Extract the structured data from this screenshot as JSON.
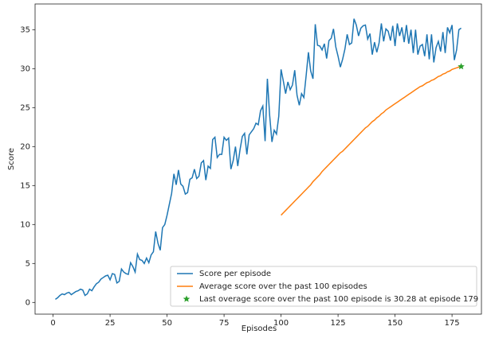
{
  "chart_data": {
    "type": "line",
    "xlabel": "Episodes",
    "ylabel": "Score",
    "xlim": [
      -7.9,
      187.9
    ],
    "ylim": [
      -1.5,
      38.3
    ],
    "xticks": [
      0,
      25,
      50,
      75,
      100,
      125,
      150,
      175
    ],
    "yticks": [
      0,
      5,
      10,
      15,
      20,
      25,
      30,
      35
    ],
    "grid": false,
    "legend": "lower right",
    "series": [
      {
        "name": "Score per episode",
        "color": "#1f77b4",
        "style": "line",
        "x": [
          1,
          2,
          3,
          4,
          5,
          6,
          7,
          8,
          9,
          10,
          11,
          12,
          13,
          14,
          15,
          16,
          17,
          18,
          19,
          20,
          21,
          22,
          23,
          24,
          25,
          26,
          27,
          28,
          29,
          30,
          31,
          32,
          33,
          34,
          35,
          36,
          37,
          38,
          39,
          40,
          41,
          42,
          43,
          44,
          45,
          46,
          47,
          48,
          49,
          50,
          51,
          52,
          53,
          54,
          55,
          56,
          57,
          58,
          59,
          60,
          61,
          62,
          63,
          64,
          65,
          66,
          67,
          68,
          69,
          70,
          71,
          72,
          73,
          74,
          75,
          76,
          77,
          78,
          79,
          80,
          81,
          82,
          83,
          84,
          85,
          86,
          87,
          88,
          89,
          90,
          91,
          92,
          93,
          94,
          95,
          96,
          97,
          98,
          99,
          100,
          101,
          102,
          103,
          104,
          105,
          106,
          107,
          108,
          109,
          110,
          111,
          112,
          113,
          114,
          115,
          116,
          117,
          118,
          119,
          120,
          121,
          122,
          123,
          124,
          125,
          126,
          127,
          128,
          129,
          130,
          131,
          132,
          133,
          134,
          135,
          136,
          137,
          138,
          139,
          140,
          141,
          142,
          143,
          144,
          145,
          146,
          147,
          148,
          149,
          150,
          151,
          152,
          153,
          154,
          155,
          156,
          157,
          158,
          159,
          160,
          161,
          162,
          163,
          164,
          165,
          166,
          167,
          168,
          169,
          170,
          171,
          172,
          173,
          174,
          175,
          176,
          177,
          178,
          179
        ],
        "values": [
          0.4,
          0.6,
          0.9,
          1.1,
          1.0,
          1.2,
          1.3,
          1.0,
          1.2,
          1.4,
          1.5,
          1.7,
          1.6,
          0.9,
          1.1,
          1.7,
          1.5,
          2.0,
          2.4,
          2.6,
          3.0,
          3.2,
          3.4,
          3.5,
          2.9,
          3.7,
          3.6,
          2.5,
          2.7,
          4.3,
          3.9,
          3.7,
          3.6,
          5.1,
          4.6,
          3.9,
          6.2,
          5.5,
          5.4,
          5.0,
          5.7,
          5.1,
          6.1,
          6.5,
          9.1,
          7.6,
          6.7,
          9.6,
          10.0,
          11.2,
          12.6,
          14.0,
          16.5,
          15.1,
          17.0,
          15.2,
          14.9,
          13.9,
          14.1,
          15.8,
          16.0,
          17.1,
          15.9,
          16.2,
          17.9,
          18.2,
          15.7,
          17.5,
          17.2,
          20.9,
          21.2,
          18.6,
          19.0,
          19.0,
          21.2,
          20.8,
          21.1,
          17.1,
          18.2,
          20.0,
          17.5,
          19.6,
          21.3,
          21.7,
          19.0,
          21.5,
          21.9,
          22.3,
          23.0,
          22.8,
          24.6,
          25.2,
          20.7,
          28.7,
          24.0,
          20.6,
          22.1,
          21.6,
          23.9,
          29.9,
          28.4,
          26.8,
          28.3,
          27.3,
          27.9,
          29.8,
          26.6,
          25.3,
          26.8,
          26.3,
          29.1,
          32.1,
          29.7,
          28.7,
          35.7,
          33.0,
          32.9,
          32.4,
          33.2,
          31.3,
          33.6,
          33.9,
          35.1,
          32.8,
          31.6,
          30.2,
          31.2,
          32.5,
          34.4,
          33.1,
          33.3,
          36.4,
          35.6,
          34.2,
          35.2,
          35.5,
          35.6,
          33.8,
          34.5,
          31.8,
          33.4,
          32.1,
          33.3,
          35.8,
          33.5,
          35.1,
          34.8,
          33.6,
          35.5,
          32.9,
          35.8,
          34.2,
          35.3,
          33.4,
          35.6,
          33.2,
          35.0,
          32.0,
          35.0,
          31.8,
          32.9,
          33.1,
          31.6,
          34.4,
          31.2,
          34.4,
          30.8,
          32.7,
          33.5,
          32.2,
          34.7,
          32.0,
          35.3,
          34.6,
          35.6,
          31.1,
          32.4,
          35.0,
          35.2
        ]
      },
      {
        "name": "Average score over the past 100 episodes",
        "color": "#ff7f0e",
        "style": "line",
        "x": [
          100,
          101,
          102,
          103,
          104,
          105,
          106,
          107,
          108,
          109,
          110,
          111,
          112,
          113,
          114,
          115,
          116,
          117,
          118,
          119,
          120,
          121,
          122,
          123,
          124,
          125,
          126,
          127,
          128,
          129,
          130,
          131,
          132,
          133,
          134,
          135,
          136,
          137,
          138,
          139,
          140,
          141,
          142,
          143,
          144,
          145,
          146,
          147,
          148,
          149,
          150,
          151,
          152,
          153,
          154,
          155,
          156,
          157,
          158,
          159,
          160,
          161,
          162,
          163,
          164,
          165,
          166,
          167,
          168,
          169,
          170,
          171,
          172,
          173,
          174,
          175,
          176,
          177,
          178,
          179
        ],
        "values": [
          11.2,
          11.5,
          11.8,
          12.1,
          12.4,
          12.7,
          13.0,
          13.3,
          13.6,
          13.9,
          14.2,
          14.5,
          14.8,
          15.1,
          15.5,
          15.8,
          16.1,
          16.4,
          16.8,
          17.1,
          17.4,
          17.7,
          18.0,
          18.3,
          18.6,
          18.9,
          19.2,
          19.4,
          19.7,
          20.0,
          20.3,
          20.6,
          20.9,
          21.2,
          21.5,
          21.8,
          22.1,
          22.4,
          22.6,
          22.9,
          23.2,
          23.4,
          23.7,
          23.9,
          24.2,
          24.4,
          24.7,
          24.9,
          25.1,
          25.3,
          25.5,
          25.7,
          25.9,
          26.1,
          26.3,
          26.5,
          26.7,
          26.9,
          27.1,
          27.3,
          27.5,
          27.7,
          27.8,
          28.0,
          28.2,
          28.3,
          28.5,
          28.6,
          28.8,
          29.0,
          29.1,
          29.3,
          29.4,
          29.6,
          29.7,
          29.9,
          30.0,
          30.1,
          30.2,
          30.28
        ]
      },
      {
        "name": "Last overage score over the past 100 episode is 30.28 at episode 179",
        "color": "#2ca02c",
        "style": "marker",
        "x": [
          179
        ],
        "values": [
          30.28
        ]
      }
    ]
  }
}
